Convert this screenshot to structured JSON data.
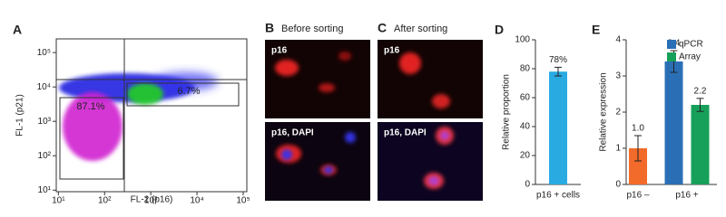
{
  "chart_data": [
    {
      "type": "scatter",
      "panel": "A",
      "xlabel": "FL-2 (p16)",
      "ylabel": "FL-1 (p21)",
      "xscale": "log",
      "yscale": "log",
      "xlim": [
        9,
        120000
      ],
      "ylim": [
        9,
        250000
      ],
      "xticks": [
        {
          "value": 10,
          "label": "10¹"
        },
        {
          "value": 100,
          "label": "10²"
        },
        {
          "value": 1000,
          "label": "10³"
        },
        {
          "value": 10000,
          "label": "10⁴"
        },
        {
          "value": 100000,
          "label": "10⁵"
        }
      ],
      "yticks": [
        {
          "value": 10,
          "label": "10¹"
        },
        {
          "value": 100,
          "label": "10²"
        },
        {
          "value": 1000,
          "label": "10³"
        },
        {
          "value": 10000,
          "label": "10⁴"
        },
        {
          "value": 100000,
          "label": "10⁵"
        }
      ],
      "annotations": [
        "87.1%",
        "6.7%"
      ]
    },
    {
      "type": "image",
      "panel": "B",
      "title": "Before sorting",
      "labels": [
        "p16",
        "p16, DAPI"
      ]
    },
    {
      "type": "image",
      "panel": "C",
      "title": "After sorting",
      "labels": [
        "p16",
        "p16, DAPI"
      ]
    },
    {
      "type": "bar",
      "panel": "D",
      "ylabel": "Relative proportion",
      "categories": [
        "p16 + cells"
      ],
      "series": [
        {
          "color": "#29abe2",
          "values": [
            78
          ],
          "value_labels": [
            "78%"
          ],
          "errors": [
            3
          ]
        }
      ],
      "ylim": [
        0,
        100
      ],
      "yticks": [
        0,
        20,
        40,
        60,
        80,
        100
      ]
    },
    {
      "type": "bar",
      "panel": "E",
      "ylabel": "Relative expression",
      "categories": [
        "p16 –",
        "p16 +"
      ],
      "series": [
        {
          "color": "#f26b2a",
          "values": [
            1.0,
            null
          ],
          "value_labels": [
            "1.0",
            null
          ],
          "errors": [
            0.35,
            null
          ]
        },
        {
          "name": "qPCR",
          "color": "#2a6fb6",
          "values": [
            null,
            3.4
          ],
          "errors": [
            null,
            0.3
          ]
        },
        {
          "name": "Array",
          "color": "#17a05a",
          "values": [
            null,
            2.2
          ],
          "errors": [
            null,
            0.18
          ]
        }
      ],
      "ylim": [
        0,
        4
      ],
      "yticks": [
        0,
        1,
        2,
        3,
        4
      ],
      "legend": "upper right"
    }
  ]
}
